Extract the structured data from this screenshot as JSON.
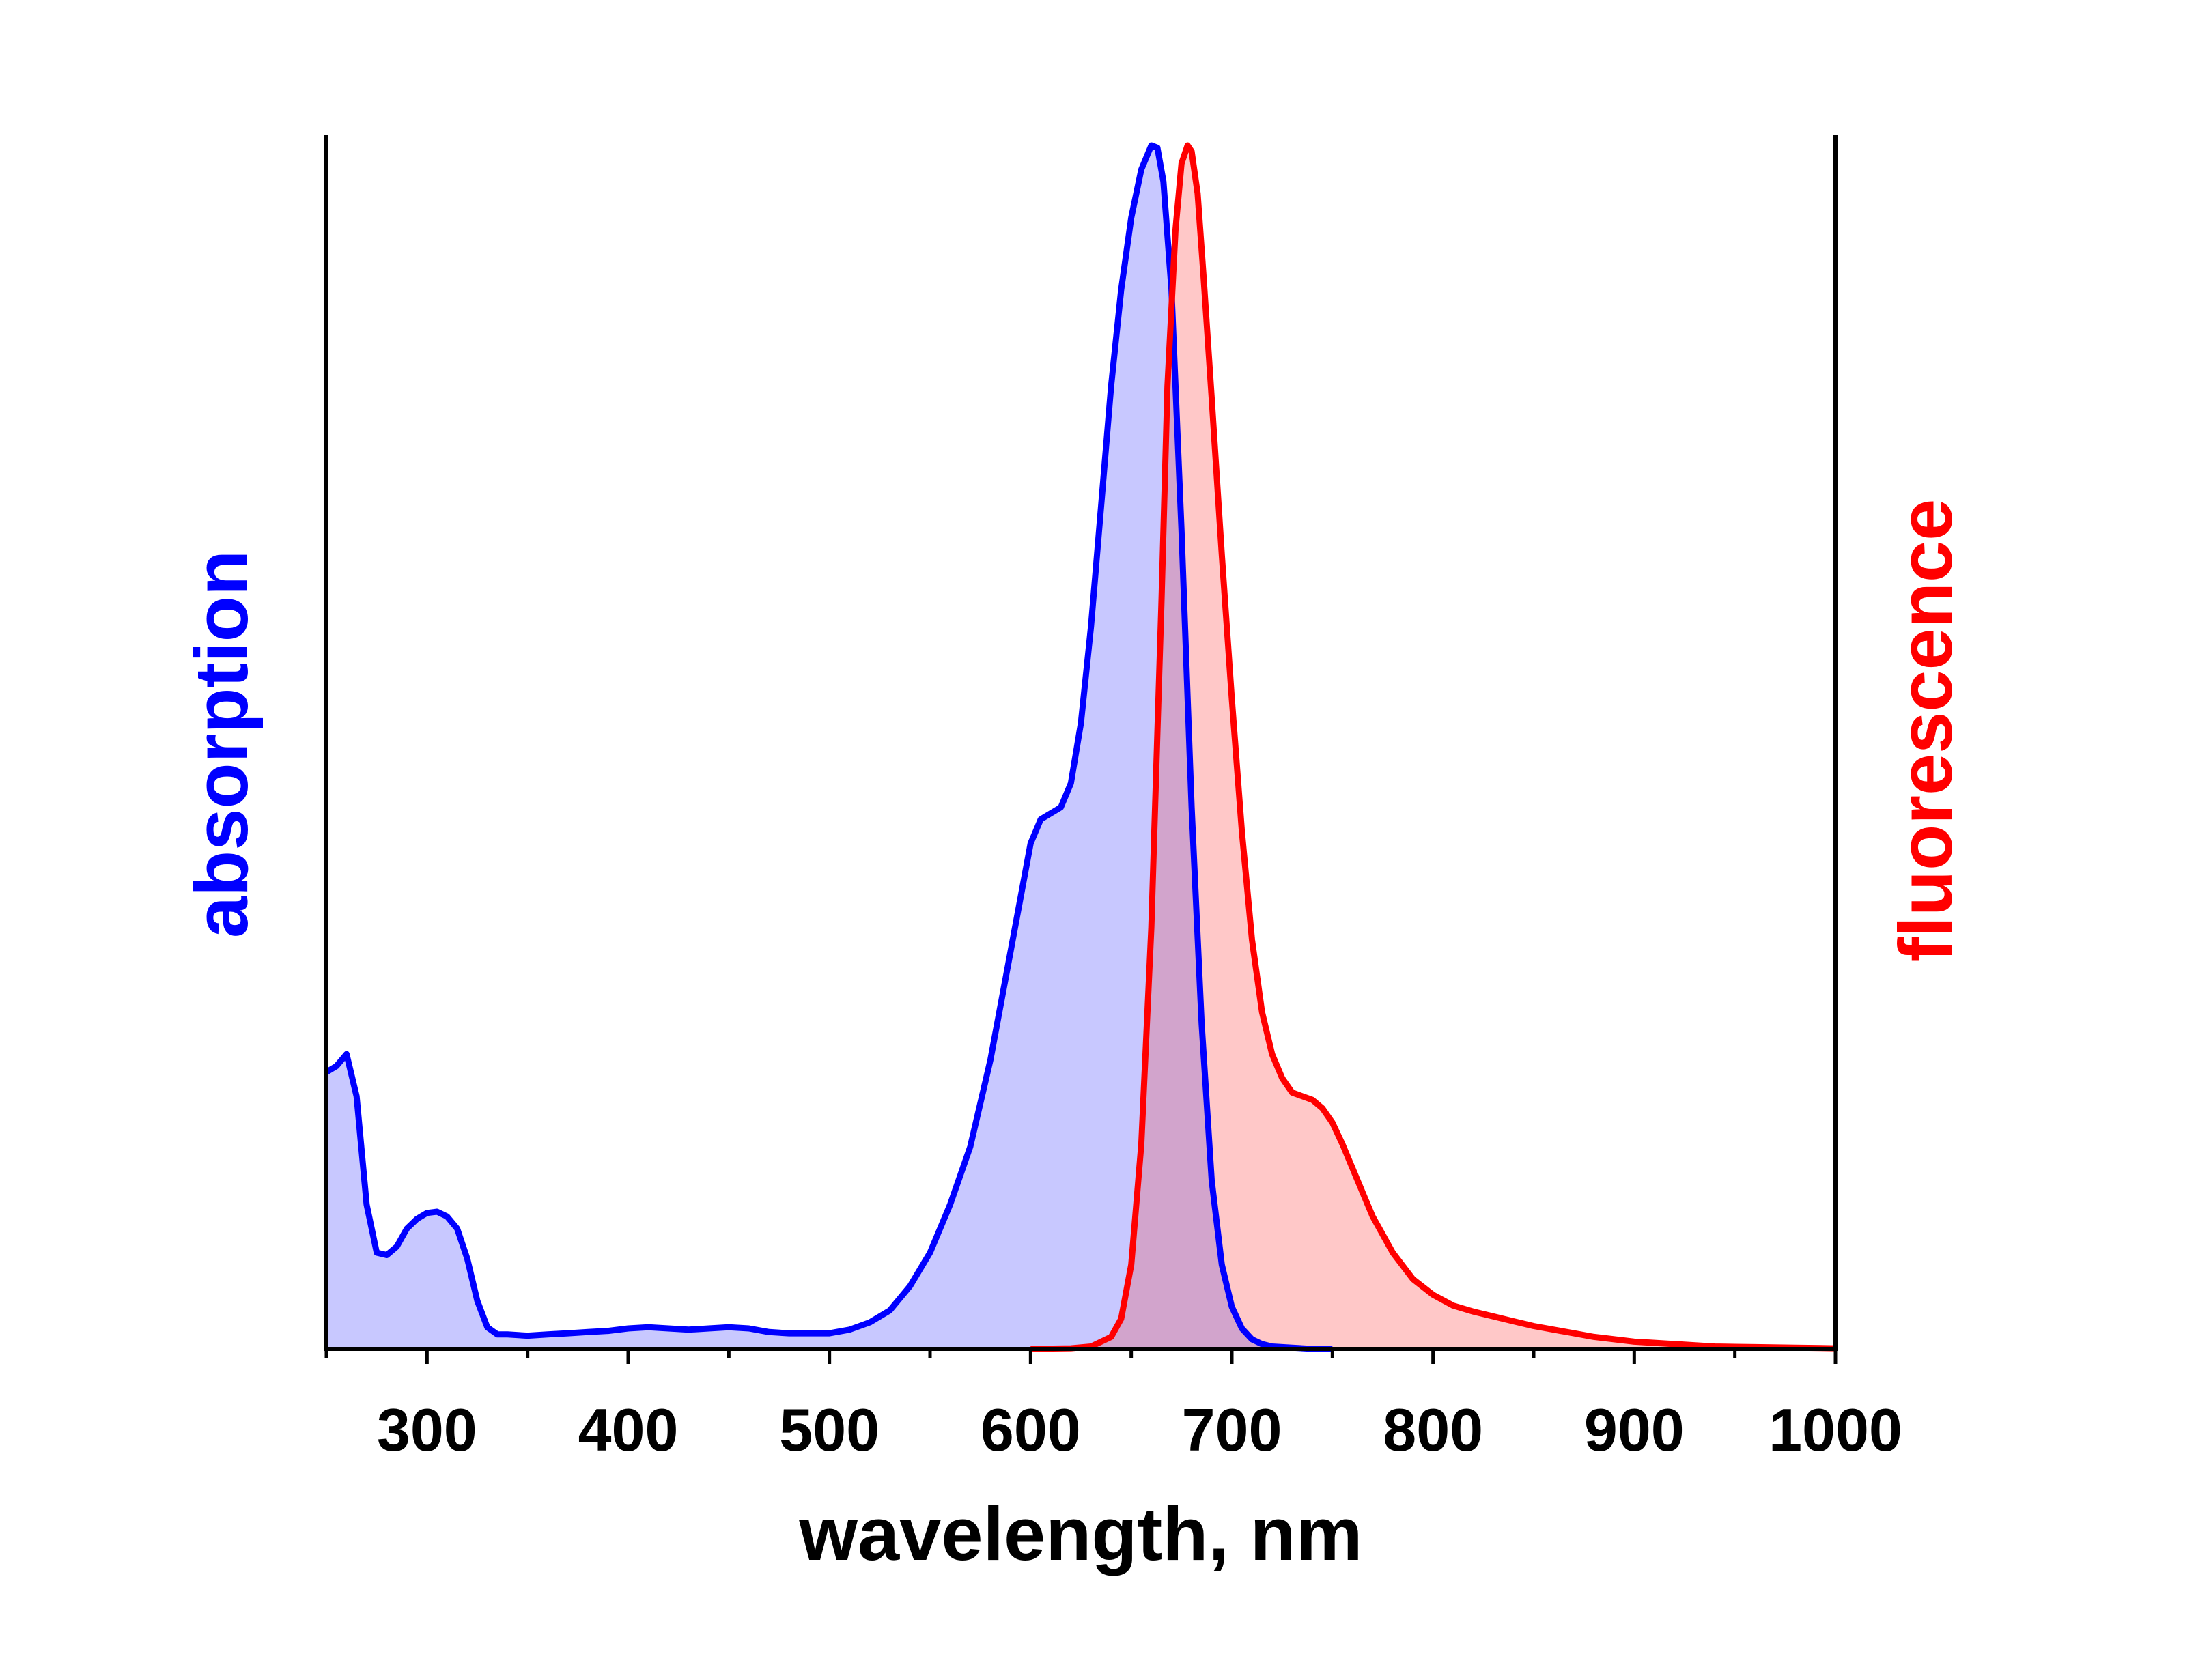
{
  "chart_data": {
    "type": "area",
    "xlabel": "wavelength, nm",
    "ylabel_left": "absorption",
    "ylabel_right": "fluorescence",
    "xlim": [
      250,
      1000
    ],
    "ylim": [
      0,
      1
    ],
    "x_ticks": [
      300,
      400,
      500,
      600,
      700,
      800,
      900,
      1000
    ],
    "x_tick_labels": [
      "300",
      "400",
      "500",
      "600",
      "700",
      "800",
      "900",
      "1000"
    ],
    "x_minor_ticks": [
      250,
      350,
      450,
      550,
      650,
      750,
      850,
      950
    ],
    "grid": false,
    "colors": {
      "absorption_line": "#0000ff",
      "absorption_fill": "#c8c8ff",
      "fluorescence_line": "#ff0000",
      "fluorescence_fill": "#ffc8c8",
      "overlap_fill": "#d2a4cc",
      "axis": "#000000"
    },
    "series": [
      {
        "name": "absorption",
        "x": [
          250,
          255,
          260,
          265,
          270,
          275,
          280,
          285,
          290,
          295,
          300,
          305,
          310,
          315,
          320,
          325,
          330,
          335,
          340,
          350,
          360,
          370,
          380,
          390,
          400,
          410,
          420,
          430,
          440,
          450,
          460,
          470,
          480,
          490,
          500,
          510,
          520,
          530,
          540,
          550,
          560,
          570,
          580,
          590,
          600,
          605,
          610,
          615,
          620,
          625,
          630,
          635,
          640,
          645,
          650,
          655,
          660,
          663,
          666,
          670,
          675,
          680,
          685,
          690,
          695,
          700,
          705,
          710,
          715,
          720,
          730,
          740,
          750
        ],
        "y": [
          0.23,
          0.235,
          0.245,
          0.21,
          0.12,
          0.08,
          0.078,
          0.085,
          0.1,
          0.108,
          0.113,
          0.114,
          0.11,
          0.1,
          0.075,
          0.04,
          0.018,
          0.012,
          0.012,
          0.011,
          0.012,
          0.013,
          0.014,
          0.015,
          0.017,
          0.018,
          0.017,
          0.016,
          0.017,
          0.018,
          0.017,
          0.014,
          0.013,
          0.013,
          0.013,
          0.016,
          0.022,
          0.032,
          0.052,
          0.08,
          0.12,
          0.168,
          0.24,
          0.33,
          0.42,
          0.44,
          0.445,
          0.45,
          0.47,
          0.52,
          0.6,
          0.7,
          0.8,
          0.88,
          0.94,
          0.98,
          1.0,
          0.998,
          0.97,
          0.88,
          0.68,
          0.45,
          0.27,
          0.14,
          0.07,
          0.035,
          0.017,
          0.008,
          0.004,
          0.002,
          0.001,
          0.0,
          0.0
        ]
      },
      {
        "name": "fluorescence",
        "x": [
          600,
          620,
          630,
          640,
          645,
          650,
          655,
          660,
          665,
          668,
          672,
          675,
          678,
          680,
          683,
          686,
          690,
          695,
          700,
          705,
          710,
          715,
          720,
          725,
          730,
          735,
          740,
          745,
          750,
          755,
          760,
          765,
          770,
          775,
          780,
          790,
          800,
          810,
          820,
          830,
          840,
          850,
          860,
          870,
          880,
          890,
          900,
          920,
          940,
          960,
          980,
          1000
        ],
        "y": [
          0.0,
          0.0005,
          0.002,
          0.01,
          0.025,
          0.07,
          0.17,
          0.35,
          0.62,
          0.8,
          0.93,
          0.985,
          1.0,
          0.995,
          0.96,
          0.89,
          0.79,
          0.66,
          0.54,
          0.43,
          0.34,
          0.28,
          0.245,
          0.225,
          0.213,
          0.21,
          0.207,
          0.2,
          0.188,
          0.17,
          0.15,
          0.13,
          0.11,
          0.095,
          0.08,
          0.058,
          0.045,
          0.036,
          0.031,
          0.027,
          0.023,
          0.019,
          0.016,
          0.013,
          0.01,
          0.008,
          0.006,
          0.004,
          0.002,
          0.0015,
          0.001,
          0.0005
        ]
      }
    ]
  }
}
